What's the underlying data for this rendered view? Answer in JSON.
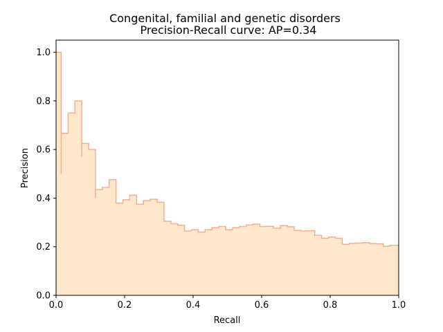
{
  "chart_data": {
    "type": "area",
    "title_line1": "Congenital, familial and genetic disorders",
    "title_line2": "Precision-Recall curve: AP=0.34",
    "xlabel": "Recall",
    "ylabel": "Precision",
    "xlim": [
      0,
      1
    ],
    "ylim": [
      0,
      1.05
    ],
    "xticks": [
      "0.0",
      "0.2",
      "0.4",
      "0.6",
      "0.8",
      "1.0"
    ],
    "yticks": [
      "0.0",
      "0.2",
      "0.4",
      "0.6",
      "0.8",
      "1.0"
    ],
    "step": "post",
    "colors": {
      "line": "#f7ad8f",
      "fill": "#fde8cc"
    },
    "series": [
      {
        "recall": [
          0.0,
          0.015,
          0.015,
          0.035,
          0.055,
          0.075,
          0.075,
          0.095,
          0.115,
          0.115,
          0.135,
          0.155,
          0.175,
          0.175,
          0.195,
          0.215,
          0.235,
          0.235,
          0.255,
          0.275,
          0.295,
          0.315,
          0.335,
          0.355,
          0.375,
          0.395,
          0.415,
          0.435,
          0.455,
          0.475,
          0.495,
          0.515,
          0.535,
          0.555,
          0.575,
          0.595,
          0.615,
          0.635,
          0.655,
          0.675,
          0.695,
          0.715,
          0.735,
          0.755,
          0.775,
          0.795,
          0.815,
          0.835,
          0.855,
          0.875,
          0.895,
          0.915,
          0.935,
          0.955,
          0.975,
          1.0
        ],
        "precision": [
          1.0,
          0.5,
          0.667,
          0.75,
          0.8,
          0.571,
          0.625,
          0.6,
          0.4,
          0.435,
          0.444,
          0.476,
          0.417,
          0.379,
          0.393,
          0.412,
          0.405,
          0.375,
          0.39,
          0.395,
          0.383,
          0.305,
          0.295,
          0.288,
          0.265,
          0.27,
          0.26,
          0.27,
          0.278,
          0.283,
          0.27,
          0.278,
          0.283,
          0.29,
          0.293,
          0.283,
          0.284,
          0.276,
          0.287,
          0.282,
          0.267,
          0.265,
          0.266,
          0.247,
          0.235,
          0.24,
          0.235,
          0.21,
          0.214,
          0.215,
          0.217,
          0.213,
          0.212,
          0.202,
          0.206,
          0.206
        ]
      }
    ]
  }
}
